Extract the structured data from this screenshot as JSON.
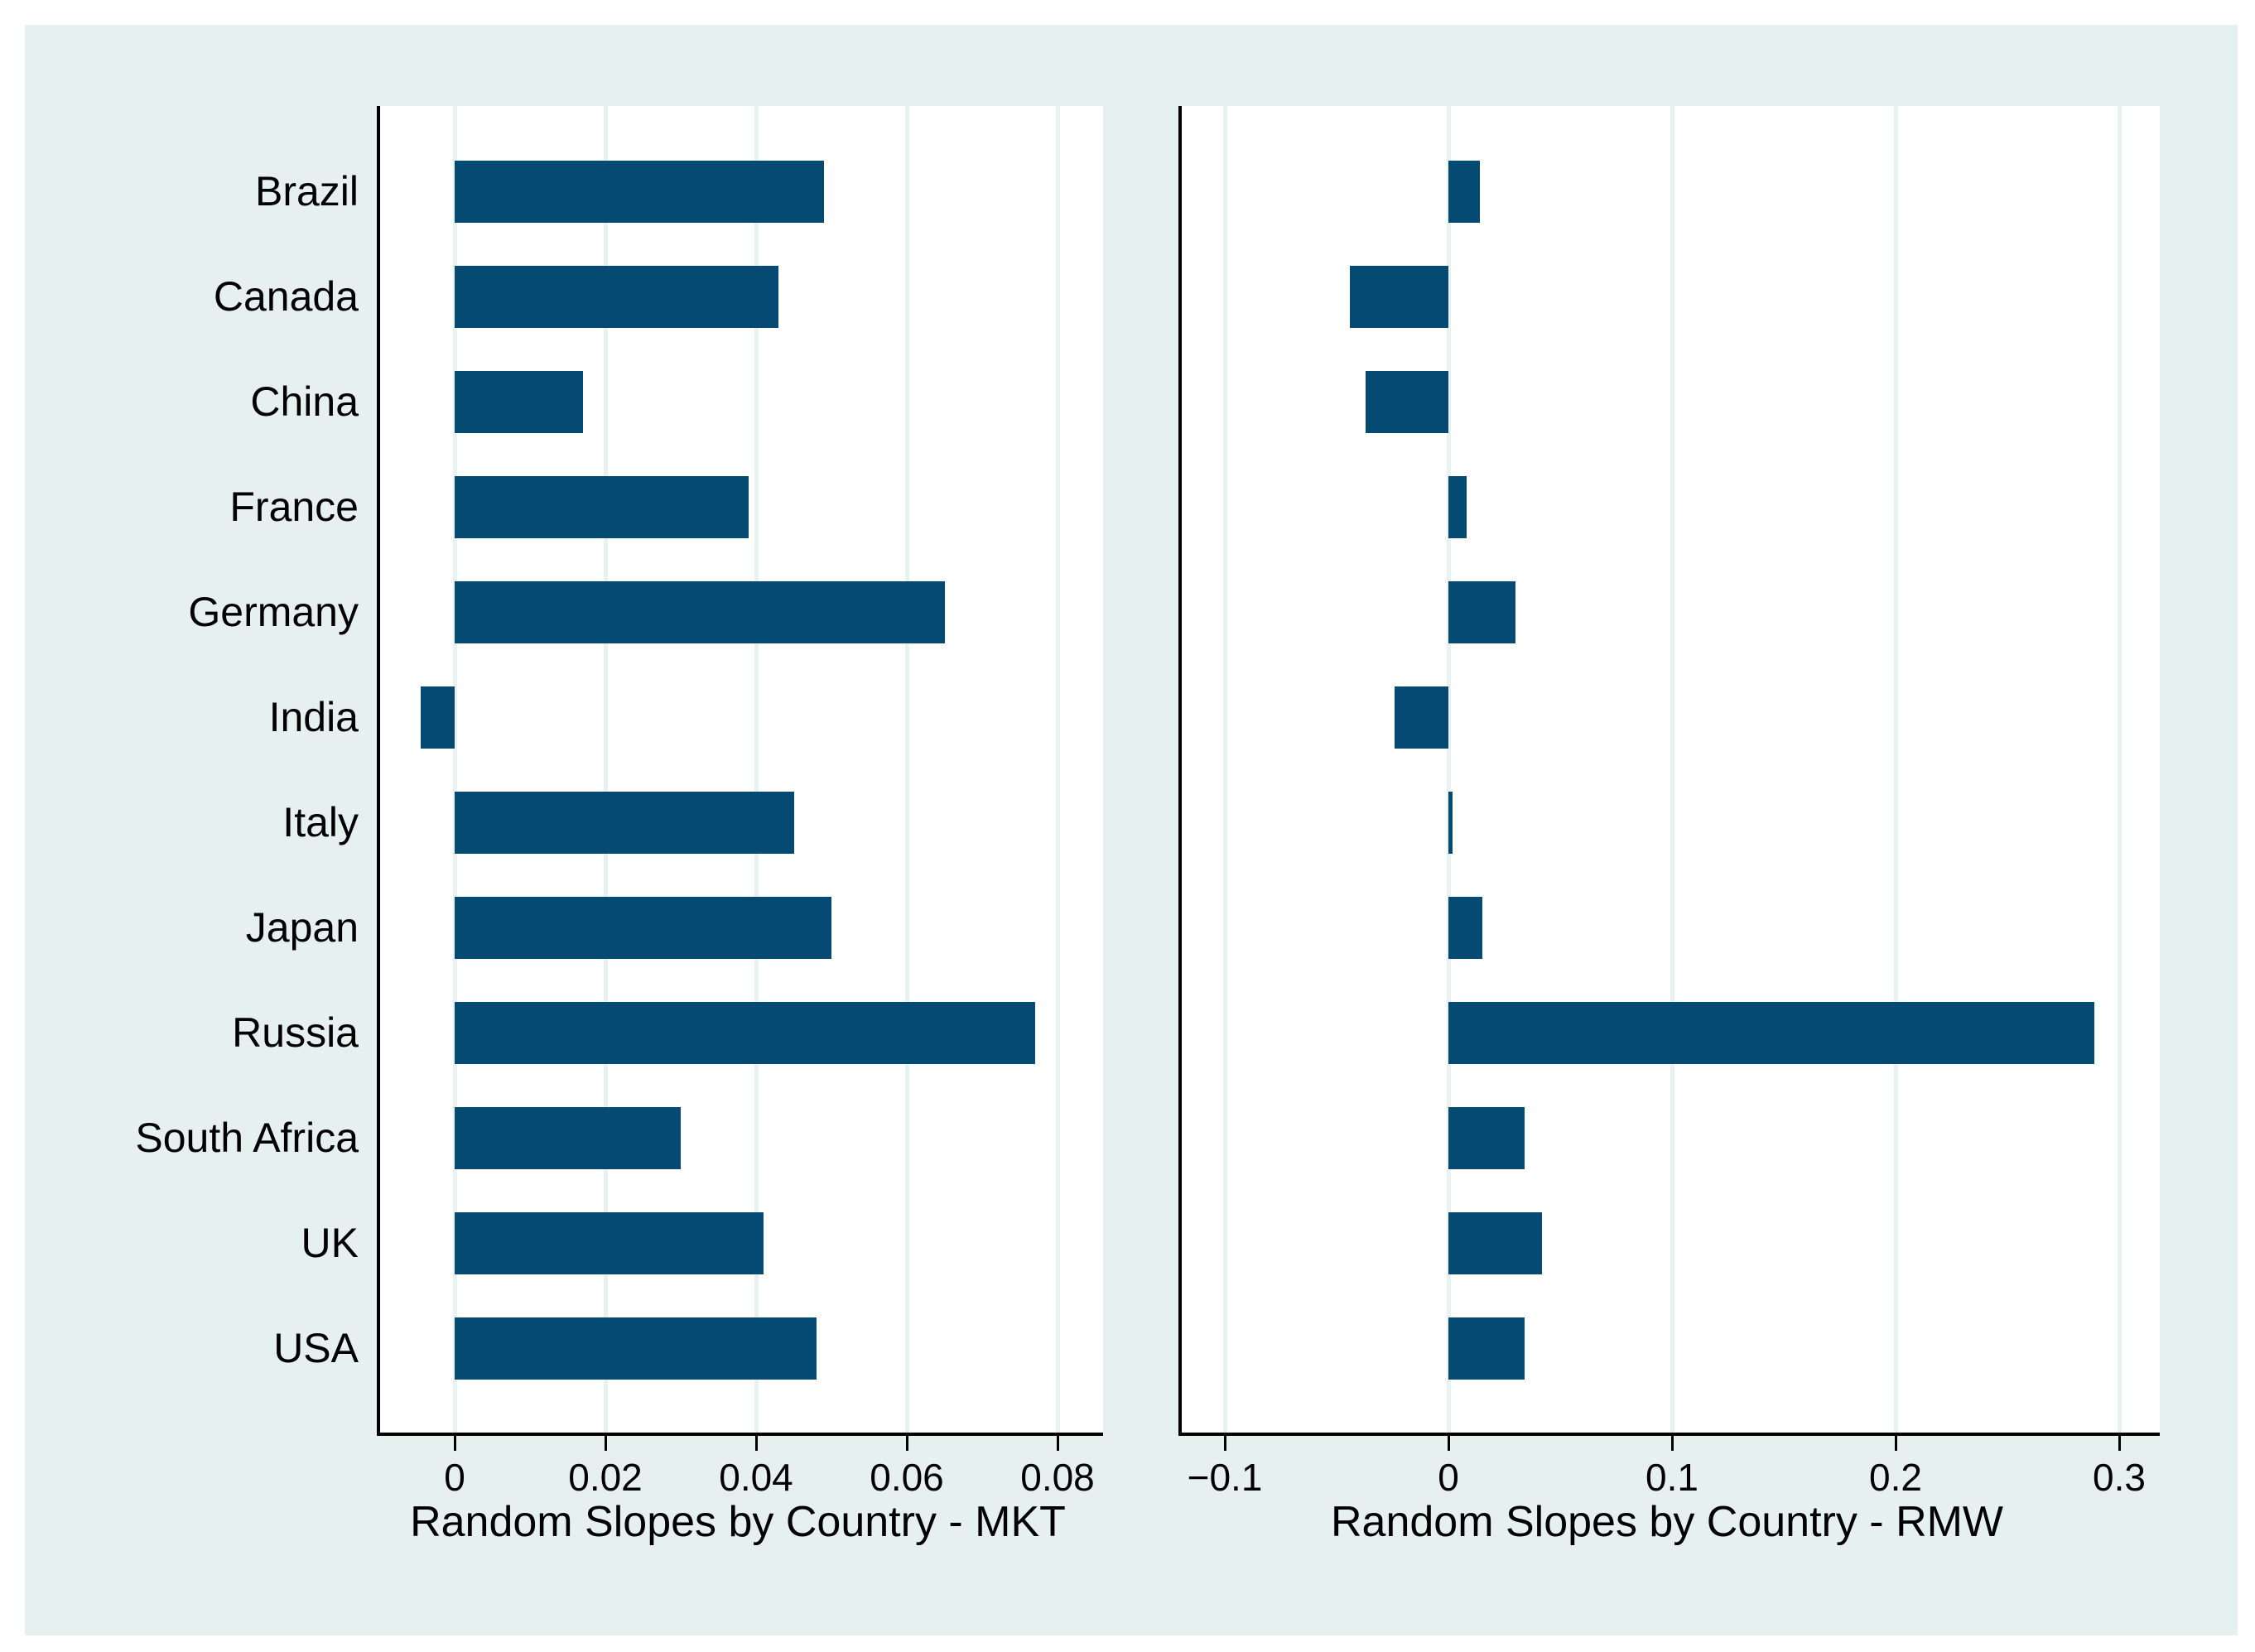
{
  "style": {
    "background_color": "#e6f0ef",
    "plot_background": "#ffffff",
    "bar_color": "#054a72",
    "gridline_color": "#e8f2f1",
    "axis_color": "#000000"
  },
  "categories": [
    "Brazil",
    "Canada",
    "China",
    "France",
    "Germany",
    "India",
    "Italy",
    "Japan",
    "Russia",
    "South Africa",
    "UK",
    "USA"
  ],
  "chart_data": [
    {
      "type": "bar",
      "orientation": "horizontal",
      "xlabel": "Random Slopes by Country - MKT",
      "categories": [
        "Brazil",
        "Canada",
        "China",
        "France",
        "Germany",
        "India",
        "Italy",
        "Japan",
        "Russia",
        "South Africa",
        "UK",
        "USA"
      ],
      "values": [
        0.049,
        0.043,
        0.017,
        0.039,
        0.065,
        -0.0045,
        0.045,
        0.05,
        0.077,
        0.03,
        0.041,
        0.048
      ],
      "xlim": [
        -0.01,
        0.086
      ],
      "xticks": [
        0,
        0.02,
        0.04,
        0.06,
        0.08
      ],
      "xtick_labels": [
        "0",
        "0.02",
        "0.04",
        "0.06",
        "0.08"
      ],
      "grid": "vertical",
      "legend": "none"
    },
    {
      "type": "bar",
      "orientation": "horizontal",
      "xlabel": "Random Slopes by Country - RMW",
      "categories": [
        "Brazil",
        "Canada",
        "China",
        "France",
        "Germany",
        "India",
        "Italy",
        "Japan",
        "Russia",
        "South Africa",
        "UK",
        "USA"
      ],
      "values": [
        0.014,
        -0.044,
        -0.037,
        0.008,
        0.03,
        -0.024,
        0.002,
        0.015,
        0.289,
        0.034,
        0.042,
        0.034
      ],
      "xlim": [
        -0.119,
        0.318
      ],
      "xticks": [
        -0.1,
        0,
        0.1,
        0.2,
        0.3
      ],
      "xtick_labels": [
        "−0.1",
        "0",
        "0.1",
        "0.2",
        "0.3"
      ],
      "grid": "vertical",
      "legend": "none"
    }
  ]
}
